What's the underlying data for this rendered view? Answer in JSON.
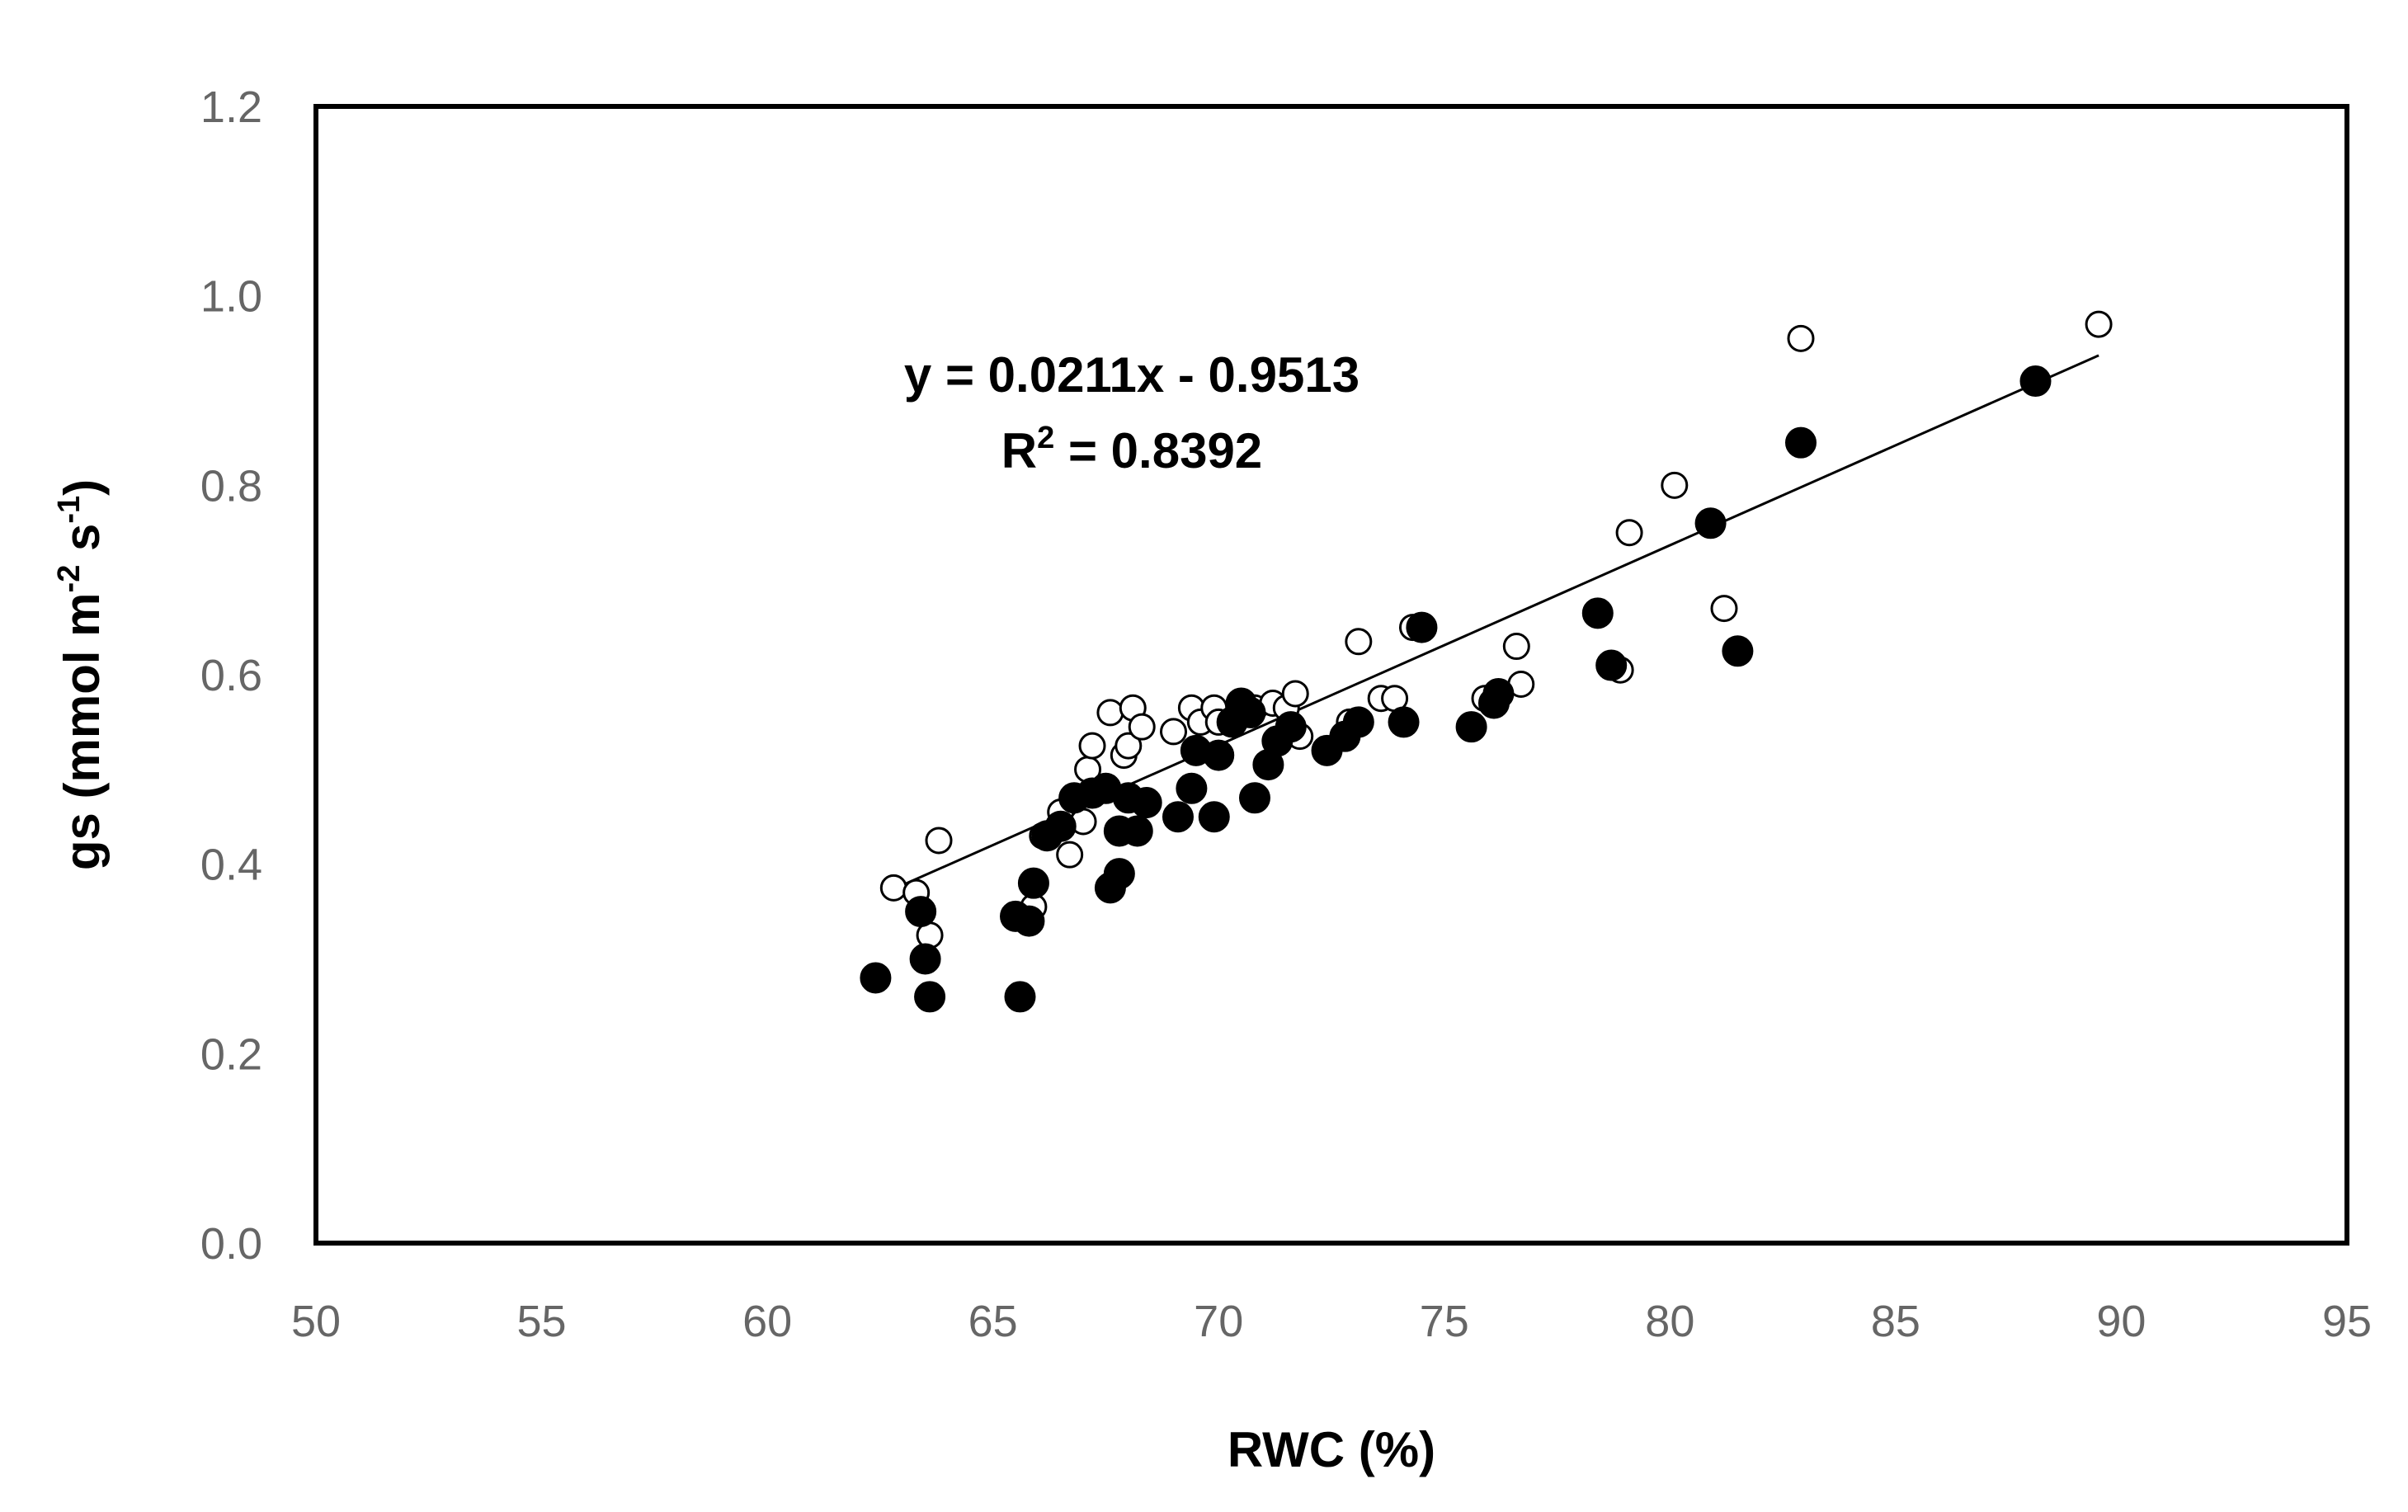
{
  "chart_data": {
    "type": "scatter",
    "xlabel": "RWC (%)",
    "ylabel_parts": [
      "gs (mmol m",
      "-2",
      " s",
      "-1",
      ")"
    ],
    "xlim": [
      50,
      95
    ],
    "ylim": [
      0.0,
      1.2
    ],
    "x_ticks": [
      "50",
      "55",
      "60",
      "65",
      "70",
      "75",
      "80",
      "85",
      "90",
      "95"
    ],
    "y_ticks": [
      "0.0",
      "0.2",
      "0.4",
      "0.6",
      "0.8",
      "1.0",
      "1.2"
    ],
    "grid": false,
    "annotation": {
      "equation": "y = 0.0211x - 0.9513",
      "r2_prefix": "R",
      "r2_sup": "2",
      "r2_value": " = 0.8392"
    },
    "trendline": {
      "slope": 0.0211,
      "intercept": -0.9513,
      "x_range": [
        63,
        89.5
      ]
    },
    "series": [
      {
        "marker": "open-circle",
        "points": [
          [
            62.8,
            0.375
          ],
          [
            63.3,
            0.37
          ],
          [
            63.6,
            0.325
          ],
          [
            63.8,
            0.425
          ],
          [
            65.9,
            0.355
          ],
          [
            66.1,
            0.43
          ],
          [
            66.5,
            0.455
          ],
          [
            66.7,
            0.41
          ],
          [
            67.0,
            0.445
          ],
          [
            67.1,
            0.5
          ],
          [
            67.2,
            0.525
          ],
          [
            67.6,
            0.56
          ],
          [
            67.9,
            0.515
          ],
          [
            68.0,
            0.525
          ],
          [
            68.1,
            0.565
          ],
          [
            68.3,
            0.545
          ],
          [
            69.0,
            0.54
          ],
          [
            69.4,
            0.565
          ],
          [
            69.6,
            0.55
          ],
          [
            69.9,
            0.565
          ],
          [
            70.0,
            0.55
          ],
          [
            70.8,
            0.565
          ],
          [
            71.2,
            0.57
          ],
          [
            71.5,
            0.565
          ],
          [
            71.7,
            0.58
          ],
          [
            71.8,
            0.535
          ],
          [
            72.9,
            0.55
          ],
          [
            73.1,
            0.635
          ],
          [
            73.6,
            0.575
          ],
          [
            73.9,
            0.575
          ],
          [
            74.3,
            0.65
          ],
          [
            75.9,
            0.575
          ],
          [
            76.6,
            0.63
          ],
          [
            76.7,
            0.59
          ],
          [
            78.9,
            0.605
          ],
          [
            79.1,
            0.75
          ],
          [
            80.1,
            0.8
          ],
          [
            81.2,
            0.67
          ],
          [
            82.9,
            0.955
          ],
          [
            89.5,
            0.97
          ]
        ]
      },
      {
        "marker": "filled-circle",
        "points": [
          [
            62.4,
            0.28
          ],
          [
            63.4,
            0.35
          ],
          [
            63.5,
            0.3
          ],
          [
            63.6,
            0.26
          ],
          [
            65.5,
            0.345
          ],
          [
            65.6,
            0.26
          ],
          [
            65.8,
            0.34
          ],
          [
            65.9,
            0.38
          ],
          [
            66.2,
            0.43
          ],
          [
            66.5,
            0.44
          ],
          [
            66.8,
            0.47
          ],
          [
            67.2,
            0.475
          ],
          [
            67.5,
            0.48
          ],
          [
            67.6,
            0.375
          ],
          [
            67.8,
            0.39
          ],
          [
            67.8,
            0.435
          ],
          [
            68.0,
            0.47
          ],
          [
            68.2,
            0.435
          ],
          [
            68.4,
            0.465
          ],
          [
            69.1,
            0.45
          ],
          [
            69.4,
            0.48
          ],
          [
            69.5,
            0.52
          ],
          [
            69.9,
            0.45
          ],
          [
            70.0,
            0.515
          ],
          [
            70.3,
            0.55
          ],
          [
            70.5,
            0.57
          ],
          [
            70.7,
            0.56
          ],
          [
            70.8,
            0.47
          ],
          [
            71.1,
            0.505
          ],
          [
            71.3,
            0.53
          ],
          [
            71.6,
            0.545
          ],
          [
            72.4,
            0.52
          ],
          [
            72.8,
            0.535
          ],
          [
            73.1,
            0.55
          ],
          [
            74.1,
            0.55
          ],
          [
            74.5,
            0.65
          ],
          [
            75.6,
            0.545
          ],
          [
            76.1,
            0.57
          ],
          [
            76.2,
            0.58
          ],
          [
            78.4,
            0.665
          ],
          [
            78.7,
            0.61
          ],
          [
            80.9,
            0.76
          ],
          [
            81.5,
            0.625
          ],
          [
            82.9,
            0.845
          ],
          [
            88.1,
            0.91
          ]
        ]
      }
    ]
  }
}
